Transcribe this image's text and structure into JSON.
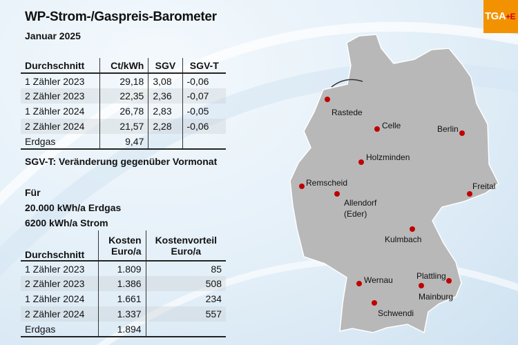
{
  "title": "WP-Strom-/Gaspreis-Barometer",
  "subtitle": "Januar 2025",
  "logo": {
    "main": "TGA",
    "suffix": "+E",
    "color": "#f39200"
  },
  "table1": {
    "headers": [
      "Durchschnitt",
      "Ct/kWh",
      "SGV",
      "SGV-T"
    ],
    "rows": [
      [
        "1 Zähler 2023",
        "29,18",
        "3,08",
        "-0,06"
      ],
      [
        "2 Zähler 2023",
        "22,35",
        "2,36",
        "-0,07"
      ],
      [
        "1 Zähler 2024",
        "26,78",
        "2,83",
        "-0,05"
      ],
      [
        "2 Zähler 2024",
        "21,57",
        "2,28",
        "-0,06"
      ],
      [
        "Erdgas",
        "9,47",
        "",
        ""
      ]
    ]
  },
  "note": "SGV-T: Veränderung gegenüber Vormonat",
  "basis": [
    "Für",
    "20.000 kWh/a Erdgas",
    "6200 kWh/a Strom"
  ],
  "table2": {
    "headers": [
      "Durchschnitt",
      "Kosten",
      "Euro/a",
      "Kostenvorteil",
      "Euro/a"
    ],
    "rows": [
      [
        "1 Zähler 2023",
        "1.809",
        "85"
      ],
      [
        "2 Zähler 2023",
        "1.386",
        "508"
      ],
      [
        "1 Zähler 2024",
        "1.661",
        "234"
      ],
      [
        "2 Zähler 2024",
        "1.337",
        "557"
      ],
      [
        "Erdgas",
        "1.894",
        ""
      ]
    ]
  },
  "map": {
    "marker_color": "#c00000",
    "land_color": "#b8b8b8",
    "cities": [
      "Rastede",
      "Celle",
      "Berlin",
      "Holzminden",
      "Remscheid",
      "Allendorf",
      "(Eder)",
      "Freital",
      "Kulmbach",
      "Wernau",
      "Plattling",
      "Mainburg",
      "Schwendi"
    ]
  }
}
